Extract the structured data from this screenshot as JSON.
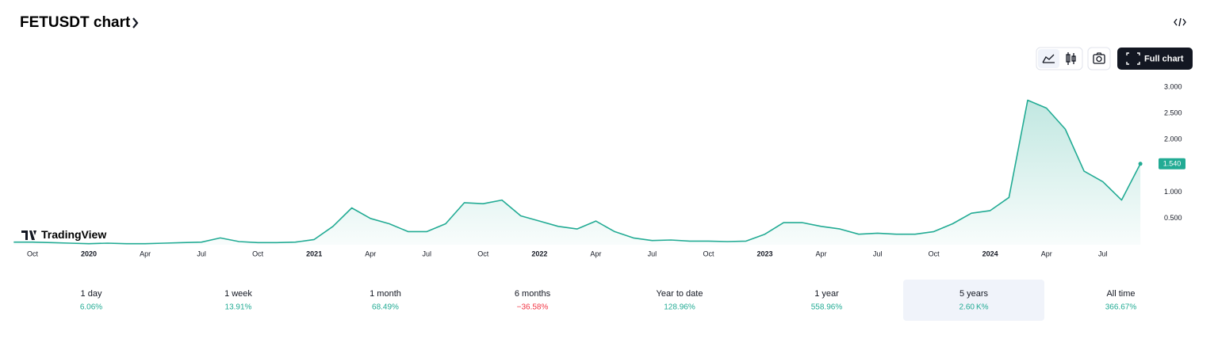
{
  "header": {
    "title": "FETUSDT chart"
  },
  "toolbar": {
    "full_chart": "Full chart"
  },
  "branding": "TradingView",
  "chart_data": {
    "type": "area",
    "x": [
      "2019-09",
      "2019-10",
      "2019-11",
      "2019-12",
      "2020-01",
      "2020-02",
      "2020-03",
      "2020-04",
      "2020-05",
      "2020-06",
      "2020-07",
      "2020-08",
      "2020-09",
      "2020-10",
      "2020-11",
      "2020-12",
      "2021-01",
      "2021-02",
      "2021-03",
      "2021-04",
      "2021-05",
      "2021-06",
      "2021-07",
      "2021-08",
      "2021-09",
      "2021-10",
      "2021-11",
      "2021-12",
      "2022-01",
      "2022-02",
      "2022-03",
      "2022-04",
      "2022-05",
      "2022-06",
      "2022-07",
      "2022-08",
      "2022-09",
      "2022-10",
      "2022-11",
      "2022-12",
      "2023-01",
      "2023-02",
      "2023-03",
      "2023-04",
      "2023-05",
      "2023-06",
      "2023-07",
      "2023-08",
      "2023-09",
      "2023-10",
      "2023-11",
      "2023-12",
      "2024-01",
      "2024-02",
      "2024-03",
      "2024-04",
      "2024-05",
      "2024-06",
      "2024-07",
      "2024-08",
      "2024-09"
    ],
    "values": [
      0.05,
      0.05,
      0.04,
      0.03,
      0.02,
      0.03,
      0.02,
      0.02,
      0.03,
      0.04,
      0.05,
      0.13,
      0.06,
      0.04,
      0.04,
      0.05,
      0.1,
      0.35,
      0.7,
      0.5,
      0.4,
      0.25,
      0.25,
      0.4,
      0.8,
      0.78,
      0.85,
      0.55,
      0.45,
      0.35,
      0.3,
      0.45,
      0.25,
      0.13,
      0.08,
      0.09,
      0.07,
      0.07,
      0.06,
      0.07,
      0.2,
      0.42,
      0.42,
      0.35,
      0.3,
      0.2,
      0.22,
      0.2,
      0.2,
      0.25,
      0.4,
      0.6,
      0.65,
      0.9,
      2.75,
      2.6,
      2.2,
      1.4,
      1.2,
      0.85,
      1.54
    ],
    "color": "#22ab94",
    "ylim": [
      0,
      3.3
    ],
    "yticks": [
      {
        "value": 0.5,
        "label": "0.500"
      },
      {
        "value": 1,
        "label": "1.000"
      },
      {
        "value": 2,
        "label": "2.000"
      },
      {
        "value": 2.5,
        "label": "2.500"
      },
      {
        "value": 3,
        "label": "3.000"
      }
    ],
    "xticks": [
      {
        "value": "2019-10",
        "label": "Oct"
      },
      {
        "value": "2020-01",
        "label": "2020"
      },
      {
        "value": "2020-04",
        "label": "Apr"
      },
      {
        "value": "2020-07",
        "label": "Jul"
      },
      {
        "value": "2020-10",
        "label": "Oct"
      },
      {
        "value": "2021-01",
        "label": "2021"
      },
      {
        "value": "2021-04",
        "label": "Apr"
      },
      {
        "value": "2021-07",
        "label": "Jul"
      },
      {
        "value": "2021-10",
        "label": "Oct"
      },
      {
        "value": "2022-01",
        "label": "2022"
      },
      {
        "value": "2022-04",
        "label": "Apr"
      },
      {
        "value": "2022-07",
        "label": "Jul"
      },
      {
        "value": "2022-10",
        "label": "Oct"
      },
      {
        "value": "2023-01",
        "label": "2023"
      },
      {
        "value": "2023-04",
        "label": "Apr"
      },
      {
        "value": "2023-07",
        "label": "Jul"
      },
      {
        "value": "2023-10",
        "label": "Oct"
      },
      {
        "value": "2024-01",
        "label": "2024"
      },
      {
        "value": "2024-04",
        "label": "Apr"
      },
      {
        "value": "2024-07",
        "label": "Jul"
      }
    ],
    "last_price": {
      "value": 1.54,
      "label": "1.540"
    },
    "grid": false
  },
  "periods": [
    {
      "name": "1 day",
      "change": "6.06%",
      "color": "#22ab94",
      "selected": false
    },
    {
      "name": "1 week",
      "change": "13.91%",
      "color": "#22ab94",
      "selected": false
    },
    {
      "name": "1 month",
      "change": "68.49%",
      "color": "#22ab94",
      "selected": false
    },
    {
      "name": "6 months",
      "change": "−36.58%",
      "color": "#f23645",
      "selected": false
    },
    {
      "name": "Year to date",
      "change": "128.96%",
      "color": "#22ab94",
      "selected": false
    },
    {
      "name": "1 year",
      "change": "558.96%",
      "color": "#22ab94",
      "selected": false
    },
    {
      "name": "5 years",
      "change": "2.60 K%",
      "color": "#22ab94",
      "selected": true
    },
    {
      "name": "All time",
      "change": "366.67%",
      "color": "#22ab94",
      "selected": false
    }
  ]
}
